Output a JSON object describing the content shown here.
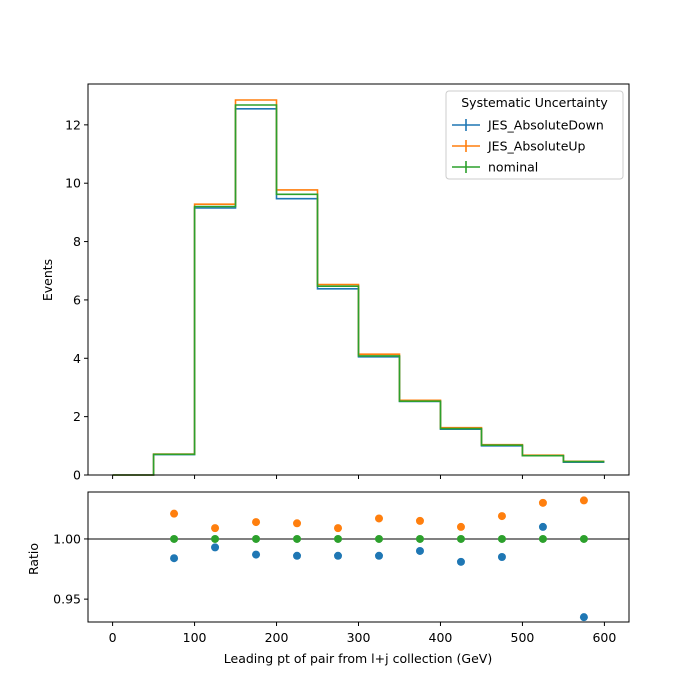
{
  "chart_data": {
    "type": "line",
    "subtype": "step histogram with ratio panel",
    "xlabel": "Leading pt of pair from l+j collection (GeV)",
    "x_ticks": [
      0,
      100,
      200,
      300,
      400,
      500,
      600
    ],
    "bin_edges": [
      0,
      50,
      100,
      150,
      200,
      250,
      300,
      350,
      400,
      450,
      500,
      550,
      600
    ],
    "main": {
      "ylabel": "Events",
      "ylim": [
        0,
        13.4
      ],
      "y_ticks": [
        0,
        2,
        4,
        6,
        8,
        10,
        12
      ],
      "series": [
        {
          "name": "JES_AbsoluteDown",
          "color": "#1f77b4",
          "values": [
            0.0,
            0.7,
            9.15,
            12.55,
            9.47,
            6.38,
            4.05,
            2.52,
            1.57,
            1.0,
            0.66,
            0.44
          ]
        },
        {
          "name": "JES_AbsoluteUp",
          "color": "#ff7f0e",
          "values": [
            0.0,
            0.72,
            9.28,
            12.85,
            9.77,
            6.53,
            4.14,
            2.56,
            1.62,
            1.04,
            0.68,
            0.47
          ]
        },
        {
          "name": "nominal",
          "color": "#2ca02c",
          "values": [
            0.0,
            0.71,
            9.2,
            12.68,
            9.62,
            6.47,
            4.08,
            2.53,
            1.59,
            1.02,
            0.66,
            0.46
          ]
        }
      ]
    },
    "ratio": {
      "ylabel": "Ratio",
      "ylim": [
        0.931,
        1.039
      ],
      "y_ticks": [
        0.95,
        1.0
      ],
      "y_tick_labels": [
        "0.95",
        "1.00"
      ],
      "reference_line": 1.0,
      "x": [
        75,
        125,
        175,
        225,
        275,
        325,
        375,
        425,
        475,
        525,
        575
      ],
      "series": [
        {
          "name": "JES_AbsoluteDown",
          "color": "#1f77b4",
          "values": [
            0.984,
            0.993,
            0.987,
            0.986,
            0.986,
            0.986,
            0.99,
            0.981,
            0.985,
            1.01,
            0.935
          ]
        },
        {
          "name": "JES_AbsoluteUp",
          "color": "#ff7f0e",
          "values": [
            1.021,
            1.009,
            1.014,
            1.013,
            1.009,
            1.017,
            1.015,
            1.01,
            1.019,
            1.03,
            1.032
          ]
        },
        {
          "name": "nominal",
          "color": "#2ca02c",
          "values": [
            1.0,
            1.0,
            1.0,
            1.0,
            1.0,
            1.0,
            1.0,
            1.0,
            1.0,
            1.0,
            1.0
          ]
        }
      ]
    },
    "legend": {
      "title": "Systematic Uncertainty",
      "position": "top-right",
      "entries": [
        "JES_AbsoluteDown",
        "JES_AbsoluteUp",
        "nominal"
      ]
    },
    "grid": false
  }
}
